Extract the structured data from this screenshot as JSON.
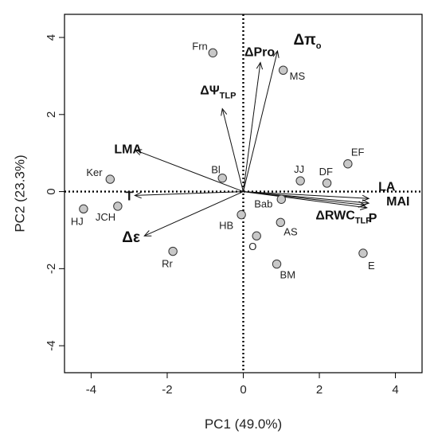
{
  "chart_data": {
    "type": "scatter",
    "subtype": "pca-biplot",
    "xlabel": "PC1 (49.0%)",
    "ylabel": "PC2 (23.3%)",
    "xlim": [
      -4.7,
      4.7
    ],
    "ylim": [
      -4.7,
      4.6
    ],
    "xticks": [
      -4,
      -2,
      0,
      2,
      4
    ],
    "yticks": [
      -4,
      -2,
      0,
      2,
      4
    ],
    "grid": false,
    "zero_lines": "dotted",
    "point_color": "#c8c8c8",
    "points": [
      {
        "label": "Frn",
        "x": -0.8,
        "y": 3.6
      },
      {
        "label": "MS",
        "x": 1.05,
        "y": 3.15
      },
      {
        "label": "EF",
        "x": 2.75,
        "y": 0.72
      },
      {
        "label": "JJ",
        "x": 1.5,
        "y": 0.28
      },
      {
        "label": "DF",
        "x": 2.2,
        "y": 0.22
      },
      {
        "label": "Bl",
        "x": -0.55,
        "y": 0.35
      },
      {
        "label": "Ker",
        "x": -3.5,
        "y": 0.32
      },
      {
        "label": "HJ",
        "x": -4.2,
        "y": -0.45
      },
      {
        "label": "JCH",
        "x": -3.3,
        "y": -0.38
      },
      {
        "label": "HB",
        "x": -0.05,
        "y": -0.6
      },
      {
        "label": "Bab",
        "x": 1.0,
        "y": -0.2
      },
      {
        "label": "AS",
        "x": 0.98,
        "y": -0.8
      },
      {
        "label": "O",
        "x": 0.35,
        "y": -1.15
      },
      {
        "label": "Rr",
        "x": -1.85,
        "y": -1.55
      },
      {
        "label": "BM",
        "x": 0.88,
        "y": -1.88
      },
      {
        "label": "E",
        "x": 3.15,
        "y": -1.6
      }
    ],
    "loadings": [
      {
        "label": "ΔΨ",
        "sub": "TLP",
        "x": -0.55,
        "y": 2.15
      },
      {
        "label": "ΔPro",
        "x": 0.45,
        "y": 3.35
      },
      {
        "label": "Δπ",
        "sub": "o",
        "x": 0.9,
        "y": 3.65
      },
      {
        "label": "LMA",
        "x": -2.85,
        "y": 1.08
      },
      {
        "label": "T",
        "x": -2.85,
        "y": -0.1
      },
      {
        "label": "Δε",
        "x": -2.6,
        "y": -1.15
      },
      {
        "label": "LA",
        "x": 3.3,
        "y": -0.18
      },
      {
        "label": "MAI",
        "x": 3.3,
        "y": -0.3
      },
      {
        "label": "P",
        "x": 3.25,
        "y": -0.42
      },
      {
        "label": "ΔRWC",
        "sub": "TLP",
        "x": 3.2,
        "y": -0.35
      }
    ]
  }
}
